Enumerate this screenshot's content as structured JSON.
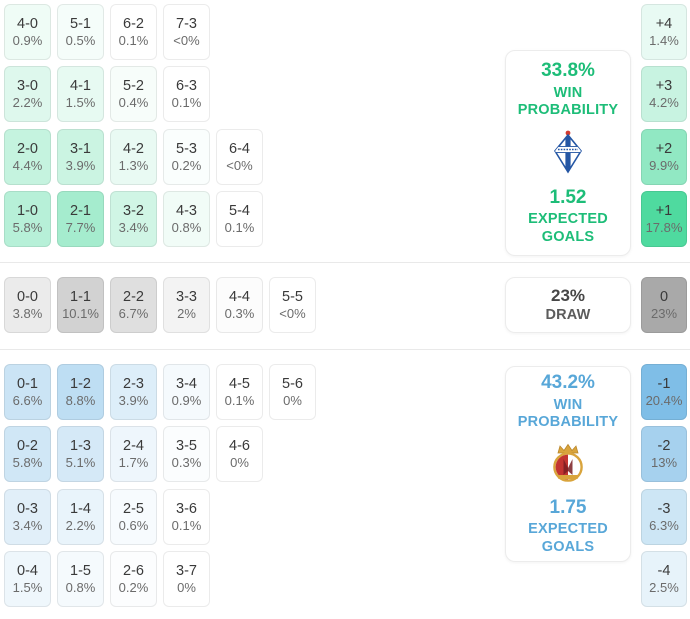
{
  "chart_data": {
    "type": "heatmap",
    "description": "Correct score probability matrix with win/draw probabilities, expected goals and goal-difference totals",
    "sections": [
      {
        "id": "home",
        "accent": "#1dbd78",
        "cell_base": "#3ed695",
        "max_pct": 20,
        "rows": [
          [
            {
              "score": "4-0",
              "pct": "0.9%"
            },
            {
              "score": "5-1",
              "pct": "0.5%"
            },
            {
              "score": "6-2",
              "pct": "0.1%"
            },
            {
              "score": "7-3",
              "pct": "<0%"
            }
          ],
          [
            {
              "score": "3-0",
              "pct": "2.2%"
            },
            {
              "score": "4-1",
              "pct": "1.5%"
            },
            {
              "score": "5-2",
              "pct": "0.4%"
            },
            {
              "score": "6-3",
              "pct": "0.1%"
            }
          ],
          [
            {
              "score": "2-0",
              "pct": "4.4%"
            },
            {
              "score": "3-1",
              "pct": "3.9%"
            },
            {
              "score": "4-2",
              "pct": "1.3%"
            },
            {
              "score": "5-3",
              "pct": "0.2%"
            },
            {
              "score": "6-4",
              "pct": "<0%"
            }
          ],
          [
            {
              "score": "1-0",
              "pct": "5.8%"
            },
            {
              "score": "2-1",
              "pct": "7.7%"
            },
            {
              "score": "3-2",
              "pct": "3.4%"
            },
            {
              "score": "4-3",
              "pct": "0.8%"
            },
            {
              "score": "5-4",
              "pct": "0.1%"
            }
          ]
        ],
        "goal_diff": [
          {
            "label": "+4",
            "pct": "1.4%"
          },
          {
            "label": "+3",
            "pct": "4.2%"
          },
          {
            "label": "+2",
            "pct": "9.9%"
          },
          {
            "label": "+1",
            "pct": "17.8%"
          }
        ],
        "summary": {
          "win_probability": "33.8%",
          "win_label": "WIN PROBABILITY",
          "expected_goals": "1.52",
          "goals_label": "EXPECTED GOALS",
          "team_icon": "home-team-crest"
        }
      },
      {
        "id": "draw",
        "accent": "#474747",
        "cell_base": "#a9a9a9",
        "max_pct": 23,
        "rows": [
          [
            {
              "score": "0-0",
              "pct": "3.8%"
            },
            {
              "score": "1-1",
              "pct": "10.1%"
            },
            {
              "score": "2-2",
              "pct": "6.7%"
            },
            {
              "score": "3-3",
              "pct": "2%"
            },
            {
              "score": "4-4",
              "pct": "0.3%"
            },
            {
              "score": "5-5",
              "pct": "<0%"
            }
          ]
        ],
        "goal_diff": [
          {
            "label": "0",
            "pct": "23%"
          }
        ],
        "summary": {
          "draw_probability": "23%",
          "draw_label": "DRAW"
        }
      },
      {
        "id": "away",
        "accent": "#58a7d8",
        "cell_base": "#7cbce6",
        "max_pct": 21,
        "rows": [
          [
            {
              "score": "0-1",
              "pct": "6.6%"
            },
            {
              "score": "1-2",
              "pct": "8.8%"
            },
            {
              "score": "2-3",
              "pct": "3.9%"
            },
            {
              "score": "3-4",
              "pct": "0.9%"
            },
            {
              "score": "4-5",
              "pct": "0.1%"
            },
            {
              "score": "5-6",
              "pct": "0%"
            }
          ],
          [
            {
              "score": "0-2",
              "pct": "5.8%"
            },
            {
              "score": "1-3",
              "pct": "5.1%"
            },
            {
              "score": "2-4",
              "pct": "1.7%"
            },
            {
              "score": "3-5",
              "pct": "0.3%"
            },
            {
              "score": "4-6",
              "pct": "0%"
            }
          ],
          [
            {
              "score": "0-3",
              "pct": "3.4%"
            },
            {
              "score": "1-4",
              "pct": "2.2%"
            },
            {
              "score": "2-5",
              "pct": "0.6%"
            },
            {
              "score": "3-6",
              "pct": "0.1%"
            }
          ],
          [
            {
              "score": "0-4",
              "pct": "1.5%"
            },
            {
              "score": "1-5",
              "pct": "0.8%"
            },
            {
              "score": "2-6",
              "pct": "0.2%"
            },
            {
              "score": "3-7",
              "pct": "0%"
            }
          ]
        ],
        "goal_diff": [
          {
            "label": "-1",
            "pct": "20.4%"
          },
          {
            "label": "-2",
            "pct": "13%"
          },
          {
            "label": "-3",
            "pct": "6.3%"
          },
          {
            "label": "-4",
            "pct": "2.5%"
          }
        ],
        "summary": {
          "win_probability": "43.2%",
          "win_label": "WIN PROBABILITY",
          "expected_goals": "1.75",
          "goals_label": "EXPECTED GOALS",
          "team_icon": "away-team-crest"
        }
      }
    ]
  }
}
